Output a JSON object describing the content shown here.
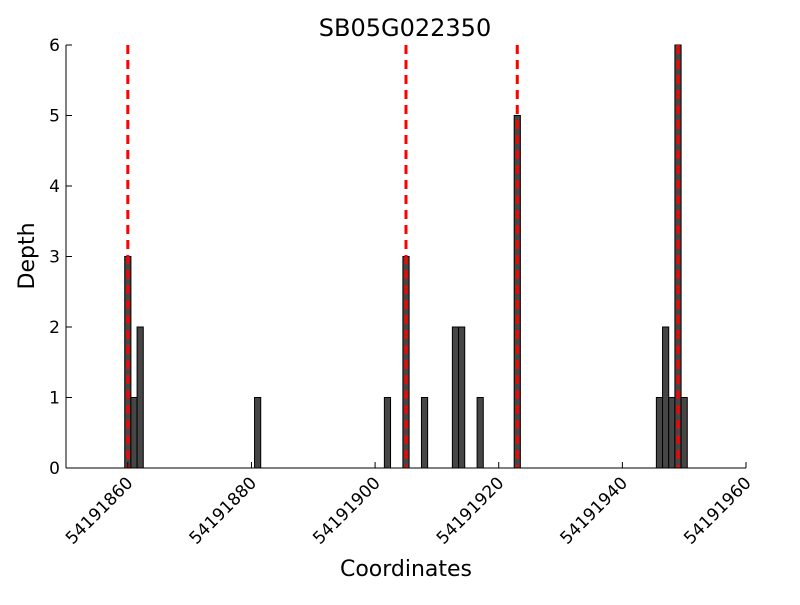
{
  "chart_data": {
    "type": "bar",
    "title": "SB05G022350",
    "xlabel": "Coordinates",
    "ylabel": "Depth",
    "xlim": [
      54191850,
      54191960
    ],
    "ylim": [
      0,
      6
    ],
    "x_ticks": [
      "54191860",
      "54191880",
      "54191900",
      "54191920",
      "54191940",
      "54191960"
    ],
    "y_ticks": [
      "0",
      "1",
      "2",
      "3",
      "4",
      "5",
      "6"
    ],
    "grid": false,
    "bar_width": 1,
    "bar_color": "#464646",
    "bar_edge_color": "#000000",
    "series": [
      {
        "x": [
          54191860,
          54191861,
          54191862,
          54191881,
          54191902,
          54191905,
          54191908,
          54191913,
          54191914,
          54191917,
          54191923,
          54191946,
          54191947,
          54191948,
          54191949,
          54191950
        ],
        "values": [
          3,
          1,
          2,
          1,
          1,
          3,
          1,
          2,
          2,
          1,
          5,
          1,
          2,
          1,
          6,
          1
        ]
      }
    ],
    "reference_lines": {
      "x": [
        54191860,
        54191905,
        54191923,
        54191949
      ],
      "color": "#ff0000",
      "style": "dashed"
    }
  }
}
